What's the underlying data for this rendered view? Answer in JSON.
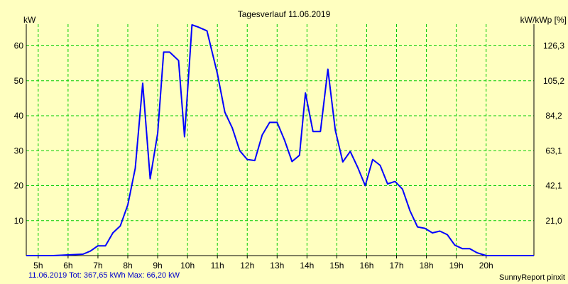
{
  "chart_data": {
    "type": "line",
    "title": "Tagesverlauf 11.06.2019",
    "ylabel_left": "kW",
    "ylabel_right": "kW/kWp [%]",
    "x_ticks": [
      "5h",
      "6h",
      "7h",
      "8h",
      "9h",
      "10h",
      "11h",
      "12h",
      "13h",
      "14h",
      "15h",
      "16h",
      "17h",
      "18h",
      "19h",
      "20h"
    ],
    "xlim": [
      4.6,
      21.6
    ],
    "ylim": [
      0,
      66.2
    ],
    "y_ticks_left": [
      10,
      20,
      30,
      40,
      50,
      60
    ],
    "y_ticks_right": [
      {
        "value": 10,
        "label": "21,0"
      },
      {
        "value": 20,
        "label": "42,1"
      },
      {
        "value": 30,
        "label": "63,1"
      },
      {
        "value": 40,
        "label": "84,2"
      },
      {
        "value": 50,
        "label": "105,2"
      },
      {
        "value": 60,
        "label": "126,3"
      }
    ],
    "grid": true,
    "series": [
      {
        "color": "#0000ff",
        "points": [
          [
            4.6,
            0.0
          ],
          [
            5.0,
            0.0
          ],
          [
            5.5,
            0.0
          ],
          [
            6.0,
            0.2
          ],
          [
            6.25,
            0.3
          ],
          [
            6.5,
            0.4
          ],
          [
            6.75,
            1.3
          ],
          [
            7.0,
            2.8
          ],
          [
            7.25,
            2.8
          ],
          [
            7.5,
            6.5
          ],
          [
            7.75,
            8.5
          ],
          [
            8.0,
            14.5
          ],
          [
            8.25,
            25.0
          ],
          [
            8.5,
            49.3
          ],
          [
            8.75,
            22.0
          ],
          [
            9.0,
            35.0
          ],
          [
            9.2,
            58.2
          ],
          [
            9.4,
            58.2
          ],
          [
            9.7,
            55.8
          ],
          [
            9.9,
            34.0
          ],
          [
            10.15,
            66.0
          ],
          [
            10.35,
            65.4
          ],
          [
            10.65,
            64.3
          ],
          [
            11.0,
            52.0
          ],
          [
            11.25,
            41.0
          ],
          [
            11.5,
            36.5
          ],
          [
            11.75,
            30.0
          ],
          [
            12.0,
            27.5
          ],
          [
            12.25,
            27.2
          ],
          [
            12.5,
            34.5
          ],
          [
            12.75,
            38.1
          ],
          [
            13.0,
            38.1
          ],
          [
            13.25,
            33.0
          ],
          [
            13.5,
            26.9
          ],
          [
            13.75,
            28.7
          ],
          [
            13.95,
            46.5
          ],
          [
            14.2,
            35.5
          ],
          [
            14.45,
            35.5
          ],
          [
            14.7,
            53.3
          ],
          [
            14.95,
            35.8
          ],
          [
            15.2,
            26.8
          ],
          [
            15.45,
            29.8
          ],
          [
            15.7,
            25.2
          ],
          [
            15.95,
            20.0
          ],
          [
            16.2,
            27.5
          ],
          [
            16.45,
            25.8
          ],
          [
            16.7,
            20.5
          ],
          [
            16.95,
            21.2
          ],
          [
            17.2,
            19.0
          ],
          [
            17.45,
            12.8
          ],
          [
            17.7,
            8.2
          ],
          [
            17.95,
            7.8
          ],
          [
            18.2,
            6.5
          ],
          [
            18.45,
            7.0
          ],
          [
            18.7,
            6.0
          ],
          [
            18.95,
            3.0
          ],
          [
            19.2,
            2.0
          ],
          [
            19.45,
            2.0
          ],
          [
            19.7,
            0.8
          ],
          [
            20.0,
            0.0
          ],
          [
            20.5,
            0.0
          ],
          [
            21.0,
            0.0
          ],
          [
            21.6,
            0.0
          ]
        ]
      }
    ]
  },
  "footer": {
    "summary": "11.06.2019 Tot: 367,65 kWh Max: 66,20 kW",
    "credit": "SunnyReport pinxit"
  },
  "colors": {
    "background": "#ffffc0",
    "grid": "#00cc00",
    "line": "#0000ff",
    "axis": "#000000"
  }
}
